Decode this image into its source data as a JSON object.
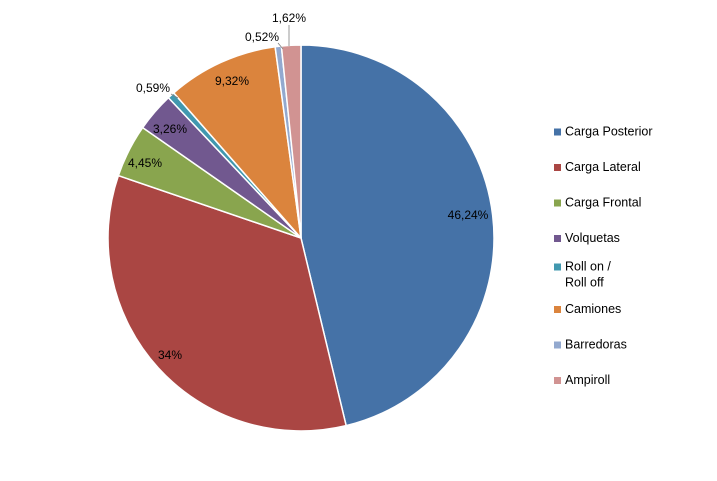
{
  "chart_data": {
    "type": "pie",
    "title": "",
    "categories": [
      "Carga Posterior",
      "Carga Lateral",
      "Carga Frontal",
      "Volquetas",
      "Roll on / Roll off",
      "Camiones",
      "Barredoras",
      "Ampiroll"
    ],
    "values": [
      46.24,
      34,
      4.45,
      3.26,
      0.59,
      9.32,
      0.52,
      1.62
    ],
    "data_labels": [
      "46,24%",
      "34%",
      "4,45%",
      "3,26%",
      "0,59%",
      "9,32%",
      "0,52%",
      "1,62%"
    ],
    "colors": [
      "#4572A7",
      "#AA4643",
      "#89A54E",
      "#71588F",
      "#4198AF",
      "#DB843D",
      "#93A9CF",
      "#D19392"
    ],
    "legend": {
      "position": "right",
      "entries": [
        {
          "lines": [
            "Carga Posterior"
          ]
        },
        {
          "lines": [
            "Carga Lateral"
          ]
        },
        {
          "lines": [
            "Carga Frontal"
          ]
        },
        {
          "lines": [
            "Volquetas"
          ]
        },
        {
          "lines": [
            "Roll on /",
            "Roll off"
          ]
        },
        {
          "lines": [
            "Camiones"
          ]
        },
        {
          "lines": [
            "Barredoras"
          ]
        },
        {
          "lines": [
            "Ampiroll"
          ]
        }
      ]
    }
  }
}
